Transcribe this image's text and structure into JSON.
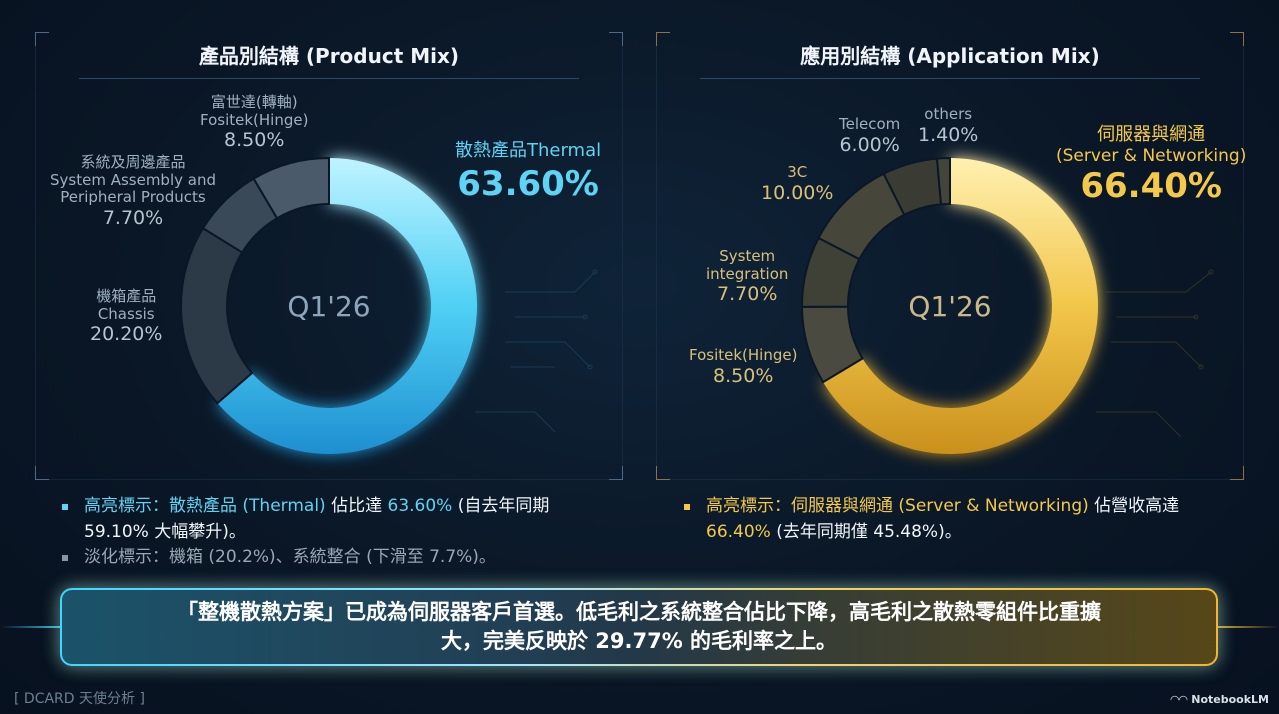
{
  "left_panel": {
    "title": "產品別結構 (Product Mix)",
    "center_label": "Q1'26",
    "labels": {
      "fositek": {
        "line1": "富世達(轉軸)",
        "line2": "Fositek(Hinge)",
        "pct": "8.50%"
      },
      "system": {
        "line1": "系統及周邊產品",
        "line2": "System Assembly and",
        "line3": "Peripheral Products",
        "pct": "7.70%"
      },
      "chassis": {
        "line1": "機箱產品",
        "line2": "Chassis",
        "pct": "20.20%"
      },
      "thermal": {
        "name": "散熱產品Thermal",
        "pct": "63.60%"
      }
    }
  },
  "right_panel": {
    "title": "應用別結構 (Application Mix)",
    "center_label": "Q1'26",
    "labels": {
      "telecom": {
        "line1": "Telecom",
        "pct": "6.00%"
      },
      "others": {
        "line1": "others",
        "pct": "1.40%"
      },
      "c3": {
        "line1": "3C",
        "pct": "10.00%"
      },
      "sysint": {
        "line1": "System",
        "line2": "integration",
        "pct": "7.70%"
      },
      "fositek": {
        "line1": "Fositek(Hinge)",
        "pct": "8.50%"
      },
      "server": {
        "line1": "伺服器與網通",
        "line2": "(Server & Networking)",
        "pct": "66.40%"
      }
    }
  },
  "chart_data": [
    {
      "type": "pie",
      "title": "產品別結構 (Product Mix)",
      "center_text": "Q1'26",
      "categories": [
        "散熱產品Thermal",
        "機箱產品 Chassis",
        "系統及周邊產品 System Assembly and Peripheral Products",
        "富世達(轉軸) Fositek(Hinge)"
      ],
      "values": [
        63.6,
        20.2,
        7.7,
        8.5
      ],
      "unit": "%",
      "highlight_color": "#4fd0f5",
      "muted_colors": [
        "#2c3a48",
        "#3a4958",
        "#4a5a6a"
      ]
    },
    {
      "type": "pie",
      "title": "應用別結構 (Application Mix)",
      "center_text": "Q1'26",
      "categories": [
        "伺服器與網通 (Server & Networking)",
        "Fositek(Hinge)",
        "System integration",
        "3C",
        "Telecom",
        "others"
      ],
      "values": [
        66.4,
        8.5,
        7.7,
        10.0,
        6.0,
        1.4
      ],
      "unit": "%",
      "highlight_color": "#f2c64a",
      "muted_colors": [
        "#4a4a40",
        "#3f4036",
        "#46463b",
        "#3a3b33",
        "#44453a"
      ]
    }
  ],
  "notes_left": {
    "b1_prefix": "高亮標示：散熱產品 (Thermal) ",
    "b1_mid": "佔比達 ",
    "b1_pct": "63.60%",
    "b1_suffix": " (自去年同期",
    "b1_line2": "59.10% 大幅攀升)。",
    "b2": "淡化標示：機箱 (20.2%)、系統整合 (下滑至 7.7%)。"
  },
  "notes_right": {
    "b1_prefix": "高亮標示：伺服器與網通 (Server & Networking) ",
    "b1_suffix": "佔營收高達",
    "b1_pct": "66.40%",
    "b1_line2": " (去年同期僅 45.48%)。"
  },
  "banner": {
    "line1": "「整機散熱方案」已成為伺服器客戶首選。低毛利之系統整合佔比下降，高毛利之散熱零組件比重擴",
    "line2": "大，完美反映於 29.77% 的毛利率之上。"
  },
  "footer": {
    "left": "[ DCARD 天使分析 ]",
    "right": "NotebookLM"
  },
  "colors": {
    "cyan": "#5fd3f3",
    "gold": "#f4c84a",
    "background": "#0a1726"
  }
}
